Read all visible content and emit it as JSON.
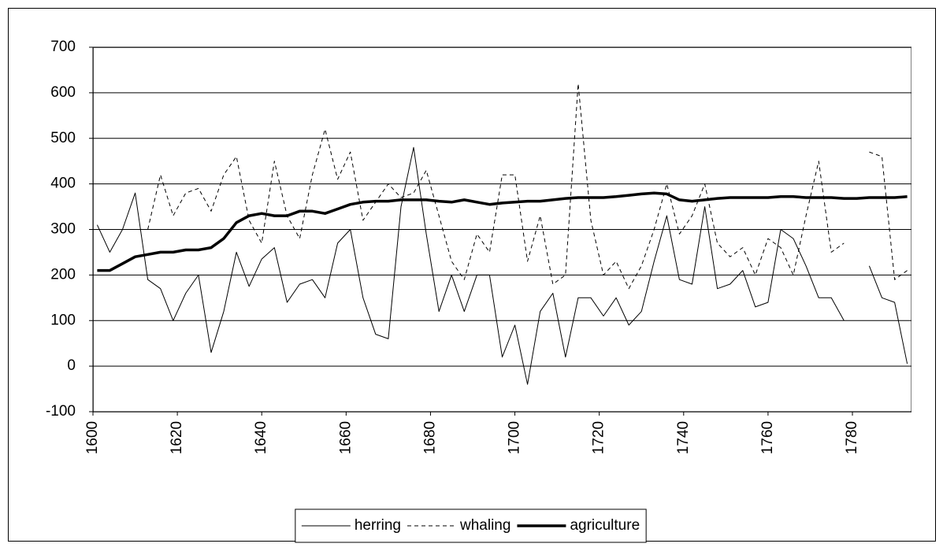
{
  "chart_data": {
    "type": "line",
    "x": [
      1601,
      1604,
      1607,
      1610,
      1613,
      1616,
      1619,
      1622,
      1625,
      1628,
      1631,
      1634,
      1637,
      1640,
      1643,
      1646,
      1649,
      1652,
      1655,
      1658,
      1661,
      1664,
      1667,
      1670,
      1673,
      1676,
      1679,
      1682,
      1685,
      1688,
      1691,
      1694,
      1697,
      1700,
      1703,
      1706,
      1709,
      1712,
      1715,
      1718,
      1721,
      1724,
      1727,
      1730,
      1733,
      1736,
      1739,
      1742,
      1745,
      1748,
      1751,
      1754,
      1757,
      1760,
      1763,
      1766,
      1769,
      1772,
      1775,
      1778,
      1781,
      1784,
      1787,
      1790,
      1793
    ],
    "series": [
      {
        "name": "herring",
        "color": "#000000",
        "width": 1,
        "dash": false,
        "values": [
          310,
          250,
          300,
          380,
          190,
          170,
          100,
          160,
          200,
          30,
          120,
          250,
          175,
          235,
          260,
          140,
          180,
          190,
          150,
          270,
          300,
          150,
          70,
          60,
          350,
          480,
          290,
          120,
          200,
          120,
          200,
          200,
          20,
          90,
          -40,
          120,
          160,
          20,
          150,
          150,
          110,
          150,
          90,
          120,
          230,
          330,
          190,
          180,
          350,
          170,
          180,
          210,
          130,
          140,
          300,
          280,
          220,
          150,
          150,
          100,
          null,
          220,
          150,
          140,
          5
        ]
      },
      {
        "name": "whaling",
        "color": "#000000",
        "width": 1,
        "dash": true,
        "values": [
          null,
          null,
          null,
          null,
          300,
          420,
          330,
          380,
          390,
          340,
          420,
          460,
          320,
          270,
          450,
          330,
          280,
          420,
          520,
          410,
          470,
          320,
          360,
          400,
          370,
          380,
          430,
          330,
          230,
          190,
          290,
          250,
          420,
          420,
          230,
          330,
          180,
          200,
          620,
          320,
          200,
          230,
          170,
          220,
          300,
          400,
          290,
          330,
          400,
          270,
          240,
          260,
          200,
          280,
          260,
          200,
          330,
          450,
          250,
          270,
          null,
          470,
          460,
          190,
          210
        ]
      },
      {
        "name": "agriculture",
        "color": "#000000",
        "width": 3.5,
        "dash": false,
        "values": [
          210,
          210,
          225,
          240,
          245,
          250,
          250,
          255,
          255,
          260,
          280,
          315,
          330,
          335,
          330,
          330,
          340,
          340,
          335,
          345,
          355,
          360,
          362,
          362,
          365,
          365,
          365,
          362,
          360,
          365,
          360,
          355,
          358,
          360,
          362,
          362,
          365,
          368,
          370,
          370,
          370,
          372,
          375,
          378,
          380,
          378,
          365,
          362,
          365,
          368,
          370,
          370,
          370,
          370,
          372,
          372,
          370,
          370,
          370,
          368,
          368,
          370,
          370,
          370,
          372
        ]
      }
    ],
    "xlim": [
      1600,
      1794
    ],
    "xticks": [
      1600,
      1620,
      1640,
      1660,
      1680,
      1700,
      1720,
      1740,
      1760,
      1780
    ],
    "ylim": [
      -100,
      700
    ],
    "yticks": [
      -100,
      0,
      100,
      200,
      300,
      400,
      500,
      600,
      700
    ],
    "grid": true,
    "legend": "bottom"
  }
}
